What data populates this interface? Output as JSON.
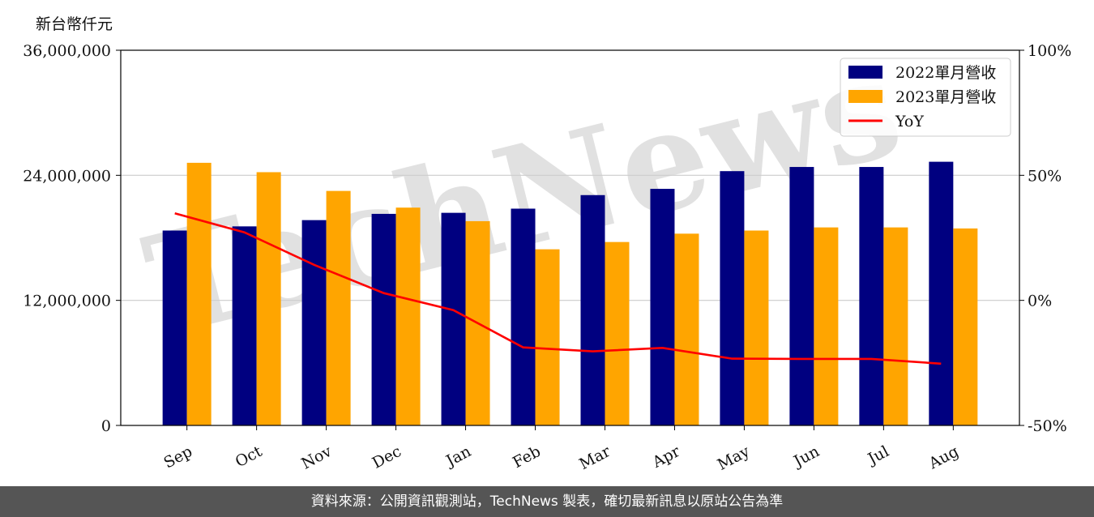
{
  "unit_label": "新台幣仟元",
  "footer": "資料來源：公開資訊觀測站，TechNews 製表，確切最新訊息以原站公告為準",
  "watermark": "TechNews",
  "chart_data": {
    "type": "bar",
    "categories": [
      "Sep",
      "Oct",
      "Nov",
      "Dec",
      "Jan",
      "Feb",
      "Mar",
      "Apr",
      "May",
      "Jun",
      "Jul",
      "Aug"
    ],
    "series": [
      {
        "name": "2022單月營收",
        "type": "bar",
        "axis": "left",
        "color": "#000080",
        "values": [
          18700000,
          19100000,
          19700000,
          20300000,
          20400000,
          20800000,
          22100000,
          22700000,
          24400000,
          24800000,
          24800000,
          25300000
        ]
      },
      {
        "name": "2023單月營收",
        "type": "bar",
        "axis": "left",
        "color": "#FFA500",
        "values": [
          25200000,
          24300000,
          22500000,
          20900000,
          19600000,
          16900000,
          17600000,
          18400000,
          18700000,
          19000000,
          19000000,
          18900000
        ]
      },
      {
        "name": "YoY",
        "type": "line",
        "axis": "right",
        "color": "#FF0000",
        "values": [
          34.8,
          27.2,
          14.2,
          2.9,
          -3.9,
          -18.8,
          -20.4,
          -19.0,
          -23.3,
          -23.4,
          -23.4,
          -25.3
        ]
      }
    ],
    "yticks_left": [
      "0",
      "12,000,000",
      "24,000,000",
      "36,000,000"
    ],
    "yticks_right": [
      "-50%",
      "0%",
      "50%",
      "100%"
    ],
    "ylim_left": [
      0,
      36000000
    ],
    "ylim_right": [
      -50,
      100
    ],
    "grid": "horizontal",
    "legend": "top-right"
  }
}
